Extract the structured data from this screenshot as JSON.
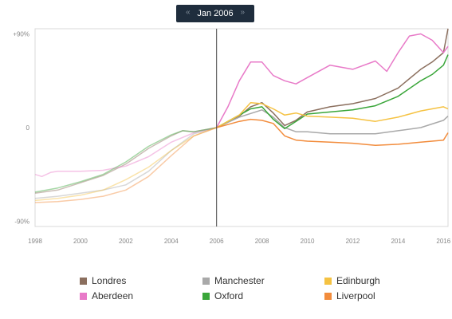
{
  "slider": {
    "label": "Jan 2006",
    "prev_icon": "double-chevron-left-icon",
    "next_icon": "double-chevron-right-icon"
  },
  "chart_data": {
    "type": "line",
    "title": "",
    "xlabel": "",
    "ylabel": "",
    "xlim": [
      1998,
      2016.2
    ],
    "ylim": [
      -95,
      95
    ],
    "x_ticks": [
      "1998",
      "2000",
      "2002",
      "2004",
      "2006",
      "2008",
      "2010",
      "2012",
      "2014",
      "2016"
    ],
    "y_ticks": [
      {
        "value": 90,
        "label": "+90%"
      },
      {
        "value": 0,
        "label": "0"
      },
      {
        "value": -90,
        "label": "-90%"
      }
    ],
    "reference_x": 2006,
    "grid": false,
    "legend_position": "bottom",
    "series": [
      {
        "name": "Londres",
        "color": "#8b6f5e",
        "x": [
          1998,
          1999,
          2000,
          2001,
          2002,
          2003,
          2004,
          2004.5,
          2005,
          2006,
          2007,
          2007.5,
          2008,
          2008.5,
          2009,
          2009.5,
          2010,
          2011,
          2012,
          2013,
          2014,
          2015,
          2015.5,
          2016,
          2016.2
        ],
        "y": [
          -63,
          -60,
          -53,
          -46,
          -35,
          -20,
          -8,
          -3,
          -4,
          0,
          11,
          20,
          24,
          14,
          2,
          7,
          15,
          20,
          23,
          28,
          38,
          56,
          63,
          72,
          95
        ]
      },
      {
        "name": "Aberdeen",
        "color": "#e87ac8",
        "x": [
          1998,
          1998.3,
          1998.7,
          1999,
          2000,
          2001,
          2002,
          2003,
          2004,
          2005,
          2006,
          2006.5,
          2007,
          2007.5,
          2008,
          2008.5,
          2009,
          2009.5,
          2010,
          2011,
          2012,
          2013,
          2013.5,
          2014,
          2014.5,
          2015,
          2015.5,
          2016,
          2016.2
        ],
        "y": [
          -45,
          -47,
          -43,
          -42,
          -42,
          -41,
          -37,
          -28,
          -14,
          -5,
          0,
          20,
          45,
          63,
          63,
          50,
          45,
          42,
          48,
          60,
          56,
          64,
          54,
          72,
          88,
          90,
          84,
          72,
          78
        ]
      },
      {
        "name": "Manchester",
        "color": "#a9a9a9",
        "x": [
          1998,
          1999,
          2000,
          2001,
          2002,
          2003,
          2004,
          2005,
          2006,
          2007,
          2008,
          2008.5,
          2009,
          2009.5,
          2010,
          2011,
          2012,
          2013,
          2014,
          2015,
          2016,
          2016.2
        ],
        "y": [
          -68,
          -66,
          -63,
          -60,
          -55,
          -42,
          -22,
          -6,
          0,
          10,
          17,
          10,
          0,
          -4,
          -4,
          -6,
          -6,
          -6,
          -3,
          0,
          7,
          11
        ]
      },
      {
        "name": "Oxford",
        "color": "#3aa63a",
        "x": [
          1998,
          1999,
          2000,
          2001,
          2002,
          2003,
          2004,
          2004.5,
          2005,
          2006,
          2007,
          2007.5,
          2008,
          2008.5,
          2009,
          2009.5,
          2010,
          2011,
          2012,
          2013,
          2014,
          2015,
          2015.5,
          2016,
          2016.2
        ],
        "y": [
          -62,
          -58,
          -52,
          -45,
          -33,
          -18,
          -7,
          -3,
          -4,
          0,
          12,
          18,
          20,
          8,
          -1,
          6,
          13,
          15,
          17,
          21,
          30,
          45,
          51,
          60,
          70
        ]
      },
      {
        "name": "Edinburgh",
        "color": "#f5c242",
        "x": [
          1998,
          1999,
          2000,
          2001,
          2002,
          2003,
          2004,
          2005,
          2006,
          2007,
          2007.5,
          2008,
          2008.5,
          2009,
          2009.5,
          2010,
          2011,
          2012,
          2013,
          2014,
          2015,
          2016,
          2016.2
        ],
        "y": [
          -70,
          -68,
          -65,
          -60,
          -50,
          -38,
          -22,
          -8,
          0,
          12,
          24,
          23,
          18,
          12,
          14,
          11,
          10,
          9,
          6,
          10,
          16,
          20,
          18
        ]
      },
      {
        "name": "Liverpool",
        "color": "#f28c3c",
        "x": [
          1998,
          1999,
          2000,
          2001,
          2002,
          2003,
          2004,
          2005,
          2006,
          2007,
          2007.5,
          2008,
          2008.5,
          2009,
          2009.5,
          2010,
          2011,
          2012,
          2013,
          2014,
          2015,
          2016,
          2016.2
        ],
        "y": [
          -72,
          -71,
          -69,
          -66,
          -60,
          -47,
          -27,
          -8,
          0,
          6,
          8,
          7,
          4,
          -8,
          -12,
          -13,
          -14,
          -15,
          -17,
          -16,
          -14,
          -12,
          -5
        ]
      }
    ]
  }
}
